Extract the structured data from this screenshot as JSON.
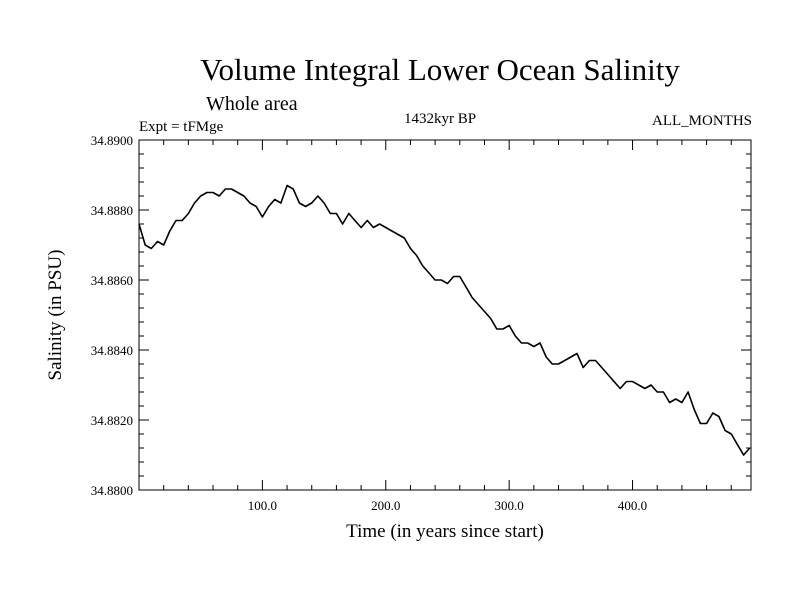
{
  "chart_data": {
    "type": "line",
    "title": "Volume Integral Lower Ocean Salinity",
    "subtitle": "Whole area",
    "experiment": "Expt = tFMge",
    "period": "1432kyr BP",
    "months": "ALL_MONTHS",
    "xlabel": "Time (in years since start)",
    "ylabel": "Salinity (in PSU)",
    "xlim": [
      0,
      496
    ],
    "ylim": [
      34.88,
      34.89
    ],
    "xticks": [
      100,
      200,
      300,
      400
    ],
    "xtick_labels": [
      "100.0",
      "200.0",
      "300.0",
      "400.0"
    ],
    "yticks": [
      34.88,
      34.882,
      34.884,
      34.886,
      34.888,
      34.89
    ],
    "ytick_labels": [
      "34.8800",
      "34.8820",
      "34.8840",
      "34.8860",
      "34.8880",
      "34.8900"
    ],
    "grid": false,
    "series": [
      {
        "name": "Salinity",
        "x": [
          0,
          5,
          10,
          15,
          20,
          25,
          30,
          35,
          40,
          45,
          50,
          55,
          60,
          65,
          70,
          75,
          80,
          85,
          90,
          95,
          100,
          105,
          110,
          115,
          120,
          125,
          130,
          135,
          140,
          145,
          150,
          155,
          160,
          165,
          170,
          175,
          180,
          185,
          190,
          195,
          200,
          205,
          210,
          215,
          220,
          225,
          230,
          235,
          240,
          245,
          250,
          255,
          260,
          265,
          270,
          275,
          280,
          285,
          290,
          295,
          300,
          305,
          310,
          315,
          320,
          325,
          330,
          335,
          340,
          345,
          350,
          355,
          360,
          365,
          370,
          375,
          380,
          385,
          390,
          395,
          400,
          405,
          410,
          415,
          420,
          425,
          430,
          435,
          440,
          445,
          450,
          455,
          460,
          465,
          470,
          475,
          480,
          485,
          490,
          495
        ],
        "values": [
          34.8876,
          34.887,
          34.8869,
          34.8871,
          34.887,
          34.8874,
          34.8877,
          34.8877,
          34.8879,
          34.8882,
          34.8884,
          34.8885,
          34.8885,
          34.8884,
          34.8886,
          34.8886,
          34.8885,
          34.8884,
          34.8882,
          34.8881,
          34.8878,
          34.8881,
          34.8883,
          34.8882,
          34.8887,
          34.8886,
          34.8882,
          34.8881,
          34.8882,
          34.8884,
          34.8882,
          34.8879,
          34.8879,
          34.8876,
          34.8879,
          34.8877,
          34.8875,
          34.8877,
          34.8875,
          34.8876,
          34.8875,
          34.8874,
          34.8873,
          34.8872,
          34.8869,
          34.8867,
          34.8864,
          34.8862,
          34.886,
          34.886,
          34.8859,
          34.8861,
          34.8861,
          34.8858,
          34.8855,
          34.8853,
          34.8851,
          34.8849,
          34.8846,
          34.8846,
          34.8847,
          34.8844,
          34.8842,
          34.8842,
          34.8841,
          34.8842,
          34.8838,
          34.8836,
          34.8836,
          34.8837,
          34.8838,
          34.8839,
          34.8835,
          34.8837,
          34.8837,
          34.8835,
          34.8833,
          34.8831,
          34.8829,
          34.8831,
          34.8831,
          34.883,
          34.8829,
          34.883,
          34.8828,
          34.8828,
          34.8825,
          34.8826,
          34.8825,
          34.8828,
          34.8823,
          34.8819,
          34.8819,
          34.8822,
          34.8821,
          34.8817,
          34.8816,
          34.8813,
          34.881,
          34.8812
        ]
      }
    ]
  }
}
